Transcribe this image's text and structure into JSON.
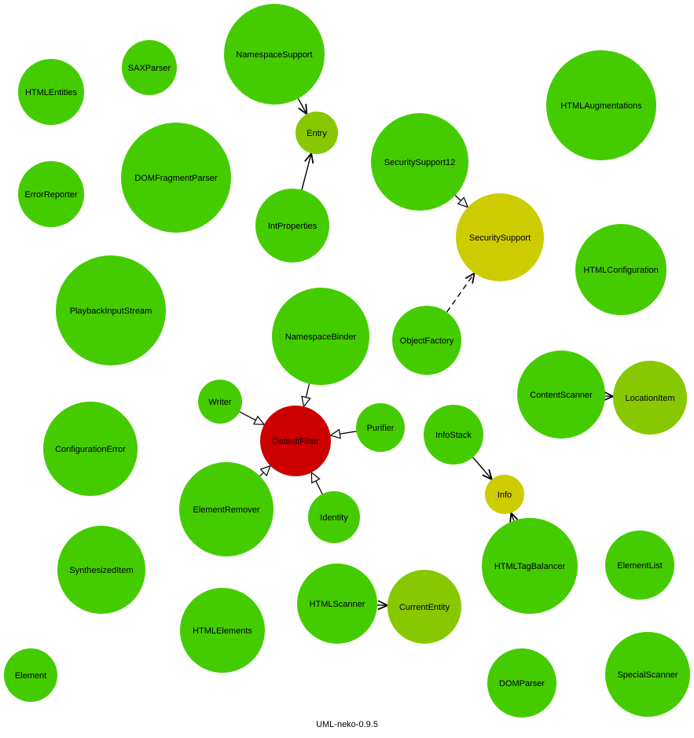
{
  "caption": "UML-neko-0.9.5",
  "colors": {
    "green": "#44cc00",
    "yellow_green": "#88c800",
    "yellow": "#cccc00",
    "red": "#cc0000",
    "edge": "#000000"
  },
  "nodes": [
    {
      "id": "NamespaceSupport",
      "label": "NamespaceSupport",
      "color": "green"
    },
    {
      "id": "SAXParser",
      "label": "SAXParser",
      "color": "green"
    },
    {
      "id": "HTMLEntities",
      "label": "HTMLEntities",
      "color": "green"
    },
    {
      "id": "Entry",
      "label": "Entry",
      "color": "yellow_green"
    },
    {
      "id": "HTMLAugmentations",
      "label": "HTMLAugmentations",
      "color": "green"
    },
    {
      "id": "DOMFragmentParser",
      "label": "DOMFragmentParser",
      "color": "green"
    },
    {
      "id": "SecuritySupport12",
      "label": "SecuritySupport12",
      "color": "green"
    },
    {
      "id": "ErrorReporter",
      "label": "ErrorReporter",
      "color": "green"
    },
    {
      "id": "IntProperties",
      "label": "IntProperties",
      "color": "green"
    },
    {
      "id": "SecuritySupport",
      "label": "SecuritySupport",
      "color": "yellow"
    },
    {
      "id": "HTMLConfiguration",
      "label": "HTMLConfiguration",
      "color": "green"
    },
    {
      "id": "PlaybackInputStream",
      "label": "PlaybackInputStream",
      "color": "green"
    },
    {
      "id": "NamespaceBinder",
      "label": "NamespaceBinder",
      "color": "green"
    },
    {
      "id": "ObjectFactory",
      "label": "ObjectFactory",
      "color": "green"
    },
    {
      "id": "ContentScanner",
      "label": "ContentScanner",
      "color": "green"
    },
    {
      "id": "LocationItem",
      "label": "LocationItem",
      "color": "yellow_green"
    },
    {
      "id": "Writer",
      "label": "Writer",
      "color": "green"
    },
    {
      "id": "DefaultFilter",
      "label": "DefaultFilter",
      "color": "red"
    },
    {
      "id": "Purifier",
      "label": "Purifier",
      "color": "green"
    },
    {
      "id": "InfoStack",
      "label": "InfoStack",
      "color": "green"
    },
    {
      "id": "ConfigurationError",
      "label": "ConfigurationError",
      "color": "green"
    },
    {
      "id": "Info",
      "label": "Info",
      "color": "yellow"
    },
    {
      "id": "ElementRemover",
      "label": "ElementRemover",
      "color": "green"
    },
    {
      "id": "Identity",
      "label": "Identity",
      "color": "green"
    },
    {
      "id": "HTMLTagBalancer",
      "label": "HTMLTagBalancer",
      "color": "green"
    },
    {
      "id": "SynthesizedItem",
      "label": "SynthesizedItem",
      "color": "green"
    },
    {
      "id": "ElementList",
      "label": "ElementList",
      "color": "green"
    },
    {
      "id": "HTMLScanner",
      "label": "HTMLScanner",
      "color": "green"
    },
    {
      "id": "CurrentEntity",
      "label": "CurrentEntity",
      "color": "yellow_green"
    },
    {
      "id": "HTMLElements",
      "label": "HTMLElements",
      "color": "green"
    },
    {
      "id": "Element",
      "label": "Element",
      "color": "green"
    },
    {
      "id": "DOMParser",
      "label": "DOMParser",
      "color": "green"
    },
    {
      "id": "SpecialScanner",
      "label": "SpecialScanner",
      "color": "green"
    }
  ],
  "edges": [
    {
      "from": "NamespaceSupport",
      "to": "Entry",
      "kind": "association"
    },
    {
      "from": "IntProperties",
      "to": "Entry",
      "kind": "association"
    },
    {
      "from": "SecuritySupport12",
      "to": "SecuritySupport",
      "kind": "generalization"
    },
    {
      "from": "ObjectFactory",
      "to": "SecuritySupport",
      "kind": "dependency"
    },
    {
      "from": "ContentScanner",
      "to": "LocationItem",
      "kind": "association"
    },
    {
      "from": "NamespaceBinder",
      "to": "DefaultFilter",
      "kind": "generalization"
    },
    {
      "from": "Writer",
      "to": "DefaultFilter",
      "kind": "generalization"
    },
    {
      "from": "Purifier",
      "to": "DefaultFilter",
      "kind": "generalization"
    },
    {
      "from": "ElementRemover",
      "to": "DefaultFilter",
      "kind": "generalization"
    },
    {
      "from": "Identity",
      "to": "DefaultFilter",
      "kind": "generalization"
    },
    {
      "from": "InfoStack",
      "to": "Info",
      "kind": "association"
    },
    {
      "from": "HTMLTagBalancer",
      "to": "Info",
      "kind": "association"
    },
    {
      "from": "HTMLScanner",
      "to": "CurrentEntity",
      "kind": "association"
    }
  ]
}
